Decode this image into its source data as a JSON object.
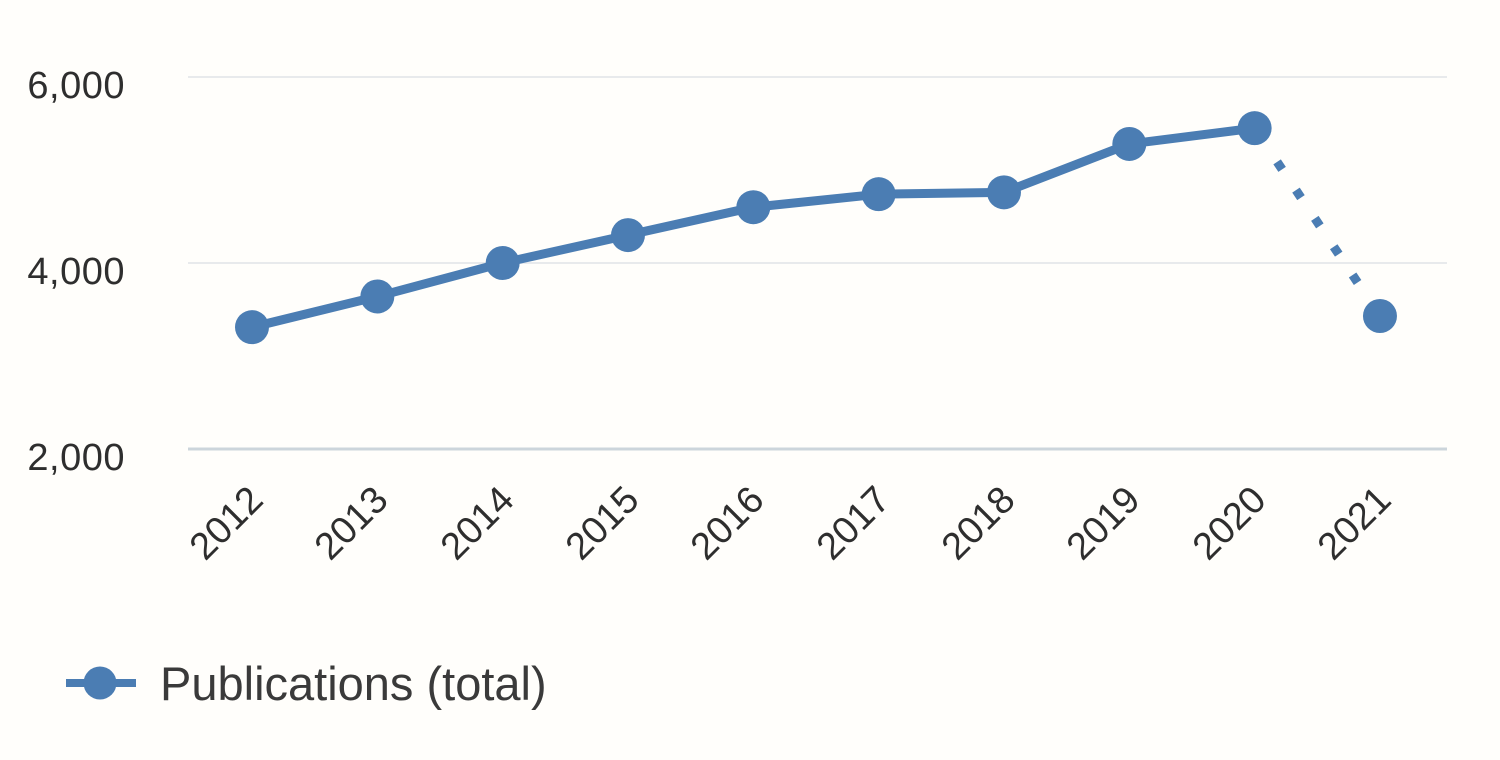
{
  "chart_data": {
    "type": "line",
    "title": "",
    "categories": [
      "2012",
      "2013",
      "2014",
      "2015",
      "2016",
      "2017",
      "2018",
      "2019",
      "2020",
      "2021"
    ],
    "series": [
      {
        "name": "Publications (total)",
        "values": [
          3310,
          3640,
          4000,
          4300,
          4600,
          4740,
          4760,
          5280,
          5450,
          3430
        ],
        "color": "#4b7db3",
        "marker": "filled-circle",
        "style_note": "solid line 2012-2020, dotted diamond segment 2020-2021"
      }
    ],
    "dashed_segment": {
      "from": "2020",
      "to": "2021"
    },
    "x_axis": {
      "label_rotation_deg": -45,
      "tick_labels": [
        "2012",
        "2013",
        "2014",
        "2015",
        "2016",
        "2017",
        "2018",
        "2019",
        "2020",
        "2021"
      ]
    },
    "y_axis": {
      "range": [
        2000,
        6200
      ],
      "gridlines": true,
      "ticks": [
        {
          "label": "2,000",
          "value": 2000
        },
        {
          "label": "4,000",
          "value": 4000
        },
        {
          "label": "6,000",
          "value": 6000
        }
      ]
    },
    "legend": {
      "position": "bottom-left",
      "items": [
        {
          "label": "Publications (total)",
          "marker": "line-with-dot",
          "color": "#4b7db3"
        }
      ]
    },
    "colors": {
      "series_blue": "#4b7db3",
      "gridline": "#e8eaec",
      "baseline_gridline": "#ccd5db",
      "tick_text": "#2e2e2e",
      "legend_text": "#3a3a3a",
      "background": "#fffefb"
    }
  }
}
